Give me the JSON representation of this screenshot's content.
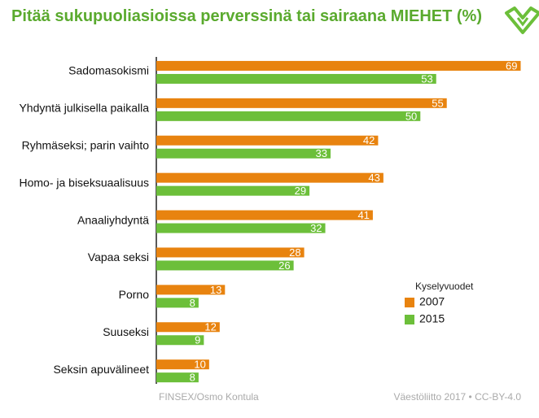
{
  "chart_data": {
    "type": "bar",
    "orientation": "horizontal",
    "title": "Pitää sukupuoliasioissa perverssinä tai sairaana MIEHET (%)",
    "categories": [
      "Sadomasokismi",
      "Yhdyntä julkisella paikalla",
      "Ryhmäseksi; parin vaihto",
      "Homo- ja biseksuaalisuus",
      "Anaaliyhdyntä",
      "Vapaa seksi",
      "Porno",
      "Suuseksi",
      "Seksin apuvälineet"
    ],
    "series": [
      {
        "name": "2007",
        "color": "#e8830f",
        "values": [
          69,
          55,
          42,
          43,
          41,
          28,
          13,
          12,
          10
        ]
      },
      {
        "name": "2015",
        "color": "#6cbf3a",
        "values": [
          53,
          50,
          33,
          29,
          32,
          26,
          8,
          9,
          8
        ]
      }
    ],
    "xlim": [
      0,
      70
    ],
    "legend_title": "Kyselyvuodet",
    "source": "FINSEX/Osmo Kontula",
    "credit": "Väestöliitto 2017 • CC-BY-4.0"
  }
}
